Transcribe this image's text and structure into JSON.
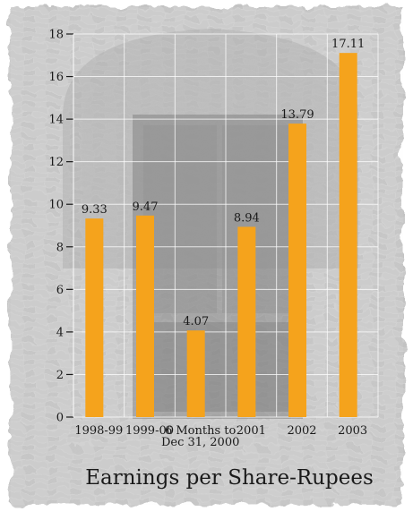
{
  "chart_data": {
    "type": "bar",
    "title": "Earnings per Share-Rupees",
    "xlabel": "",
    "ylabel": "",
    "ylim": [
      0,
      18
    ],
    "yticks": [
      "0",
      "2",
      "4",
      "6",
      "8",
      "10",
      "12",
      "14",
      "16",
      "18"
    ],
    "categories": [
      "1998-99",
      "1999-00",
      "6 Months to Dec 31, 2000",
      "2001",
      "2002",
      "2003"
    ],
    "category_lines": [
      [
        "1998-99"
      ],
      [
        "1999-00"
      ],
      [
        "6 Months to",
        "Dec 31, 2000"
      ],
      [
        "2001"
      ],
      [
        "2002"
      ],
      [
        "2003"
      ]
    ],
    "values": [
      9.33,
      9.47,
      4.07,
      8.94,
      13.79,
      17.11
    ],
    "value_labels": [
      "9.33",
      "9.47",
      "4.07",
      "8.94",
      "13.79",
      "17.11"
    ],
    "grid": true,
    "bar_color": "#f5a31c",
    "background": "photo of a weathered brick building with an ornate arched window"
  }
}
